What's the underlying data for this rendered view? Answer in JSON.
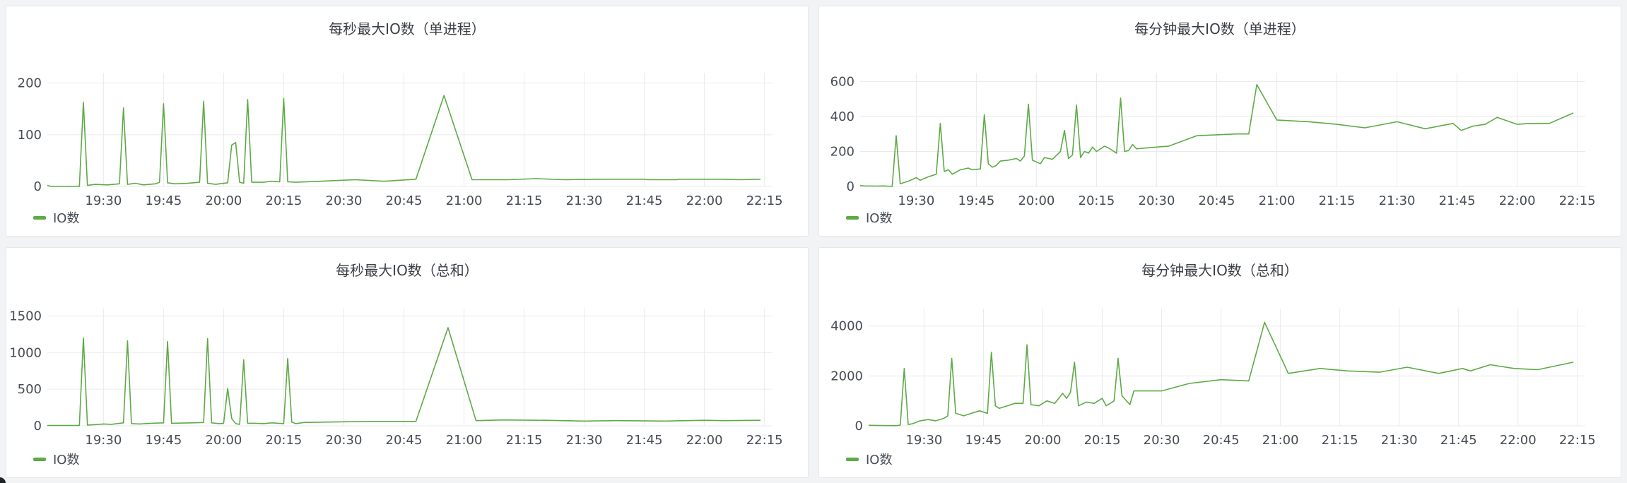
{
  "colors": {
    "series": "#5daa46",
    "grid": "#e8eaed",
    "tick": "#464c54"
  },
  "chart_data": [
    {
      "type": "line",
      "title": "每秒最大IO数（单进程）",
      "ylim": [
        0,
        220
      ],
      "yticks": [
        0,
        100,
        200
      ],
      "xlim": [
        "19:16",
        "22:17"
      ],
      "xticks": [
        "19:30",
        "19:45",
        "20:00",
        "20:15",
        "20:30",
        "20:45",
        "21:00",
        "21:15",
        "21:30",
        "21:45",
        "22:00",
        "22:15"
      ],
      "legend": "bottom-left",
      "grid": true,
      "series": [
        {
          "name": "IO数",
          "points": [
            [
              "19:16",
              2
            ],
            [
              "19:17",
              0
            ],
            [
              "19:24",
              0
            ],
            [
              "19:25",
              163
            ],
            [
              "19:26",
              2
            ],
            [
              "19:28",
              4
            ],
            [
              "19:31",
              3
            ],
            [
              "19:34",
              5
            ],
            [
              "19:35",
              152
            ],
            [
              "19:36",
              4
            ],
            [
              "19:38",
              6
            ],
            [
              "19:40",
              3
            ],
            [
              "19:43",
              5
            ],
            [
              "19:44",
              8
            ],
            [
              "19:45",
              160
            ],
            [
              "19:46",
              7
            ],
            [
              "19:48",
              5
            ],
            [
              "19:51",
              6
            ],
            [
              "19:54",
              8
            ],
            [
              "19:55",
              165
            ],
            [
              "19:56",
              6
            ],
            [
              "19:58",
              4
            ],
            [
              "20:00",
              6
            ],
            [
              "20:01",
              7
            ],
            [
              "20:02",
              80
            ],
            [
              "20:03",
              85
            ],
            [
              "20:04",
              8
            ],
            [
              "20:05",
              6
            ],
            [
              "20:06",
              168
            ],
            [
              "20:07",
              8
            ],
            [
              "20:10",
              8
            ],
            [
              "20:12",
              10
            ],
            [
              "20:14",
              9
            ],
            [
              "20:15",
              170
            ],
            [
              "20:16",
              9
            ],
            [
              "20:18",
              8
            ],
            [
              "20:24",
              10
            ],
            [
              "20:30",
              12
            ],
            [
              "20:33",
              13
            ],
            [
              "20:40",
              10
            ],
            [
              "20:48",
              14
            ],
            [
              "20:55",
              176
            ],
            [
              "21:02",
              13
            ],
            [
              "21:11",
              13
            ],
            [
              "21:18",
              15
            ],
            [
              "21:25",
              13
            ],
            [
              "21:35",
              14
            ],
            [
              "21:45",
              14
            ],
            [
              "21:46",
              13
            ],
            [
              "21:53",
              13
            ],
            [
              "21:54",
              14
            ],
            [
              "22:03",
              14
            ],
            [
              "22:09",
              13
            ],
            [
              "22:14",
              14
            ]
          ]
        }
      ]
    },
    {
      "type": "line",
      "title": "每分钟最大IO数（单进程）",
      "ylim": [
        0,
        650
      ],
      "yticks": [
        0,
        200,
        400,
        600
      ],
      "xlim": [
        "19:16",
        "22:17"
      ],
      "xticks": [
        "19:30",
        "19:45",
        "20:00",
        "20:15",
        "20:30",
        "20:45",
        "21:00",
        "21:15",
        "21:30",
        "21:45",
        "22:00",
        "22:15"
      ],
      "legend": "bottom-left",
      "grid": true,
      "series": [
        {
          "name": "IO数",
          "points": [
            [
              "19:16",
              5
            ],
            [
              "19:17",
              3
            ],
            [
              "19:20",
              2
            ],
            [
              "19:22",
              3
            ],
            [
              "19:24",
              0
            ],
            [
              "19:25",
              290
            ],
            [
              "19:26",
              15
            ],
            [
              "19:28",
              30
            ],
            [
              "19:30",
              50
            ],
            [
              "19:31",
              35
            ],
            [
              "19:33",
              55
            ],
            [
              "19:35",
              70
            ],
            [
              "19:36",
              360
            ],
            [
              "19:37",
              85
            ],
            [
              "19:38",
              95
            ],
            [
              "19:39",
              70
            ],
            [
              "19:41",
              95
            ],
            [
              "19:43",
              105
            ],
            [
              "19:44",
              95
            ],
            [
              "19:46",
              100
            ],
            [
              "19:47",
              410
            ],
            [
              "19:48",
              130
            ],
            [
              "19:49",
              110
            ],
            [
              "19:50",
              120
            ],
            [
              "19:51",
              145
            ],
            [
              "19:53",
              150
            ],
            [
              "19:55",
              160
            ],
            [
              "19:56",
              145
            ],
            [
              "19:57",
              175
            ],
            [
              "19:58",
              470
            ],
            [
              "19:59",
              150
            ],
            [
              "20:01",
              130
            ],
            [
              "20:02",
              165
            ],
            [
              "20:04",
              155
            ],
            [
              "20:06",
              200
            ],
            [
              "20:07",
              320
            ],
            [
              "20:08",
              160
            ],
            [
              "20:09",
              180
            ],
            [
              "20:10",
              465
            ],
            [
              "20:11",
              165
            ],
            [
              "20:12",
              200
            ],
            [
              "20:13",
              190
            ],
            [
              "20:14",
              225
            ],
            [
              "20:15",
              200
            ],
            [
              "20:17",
              230
            ],
            [
              "20:18",
              220
            ],
            [
              "20:20",
              190
            ],
            [
              "20:21",
              505
            ],
            [
              "20:22",
              200
            ],
            [
              "20:23",
              205
            ],
            [
              "20:24",
              240
            ],
            [
              "20:25",
              215
            ],
            [
              "20:30",
              225
            ],
            [
              "20:33",
              230
            ],
            [
              "20:40",
              290
            ],
            [
              "20:50",
              300
            ],
            [
              "20:53",
              300
            ],
            [
              "20:55",
              582
            ],
            [
              "21:00",
              380
            ],
            [
              "21:08",
              370
            ],
            [
              "21:15",
              355
            ],
            [
              "21:22",
              335
            ],
            [
              "21:30",
              370
            ],
            [
              "21:37",
              330
            ],
            [
              "21:44",
              360
            ],
            [
              "21:46",
              320
            ],
            [
              "21:49",
              345
            ],
            [
              "21:52",
              355
            ],
            [
              "21:55",
              395
            ],
            [
              "22:00",
              355
            ],
            [
              "22:03",
              360
            ],
            [
              "22:08",
              360
            ],
            [
              "22:14",
              420
            ]
          ]
        }
      ]
    },
    {
      "type": "line",
      "title": "每秒最大IO数（总和）",
      "ylim": [
        0,
        1600
      ],
      "yticks": [
        0,
        500,
        1000,
        1500
      ],
      "xlim": [
        "19:16",
        "22:17"
      ],
      "xticks": [
        "19:30",
        "19:45",
        "20:00",
        "20:15",
        "20:30",
        "20:45",
        "21:00",
        "21:15",
        "21:30",
        "21:45",
        "22:00",
        "22:15"
      ],
      "legend": "bottom-left",
      "grid": true,
      "series": [
        {
          "name": "IO数",
          "points": [
            [
              "19:16",
              5
            ],
            [
              "19:24",
              5
            ],
            [
              "19:25",
              1200
            ],
            [
              "19:26",
              10
            ],
            [
              "19:29",
              20
            ],
            [
              "19:30",
              25
            ],
            [
              "19:32",
              20
            ],
            [
              "19:35",
              40
            ],
            [
              "19:36",
              1160
            ],
            [
              "19:37",
              30
            ],
            [
              "19:39",
              25
            ],
            [
              "19:42",
              35
            ],
            [
              "19:45",
              40
            ],
            [
              "19:46",
              1150
            ],
            [
              "19:47",
              35
            ],
            [
              "19:52",
              40
            ],
            [
              "19:55",
              45
            ],
            [
              "19:56",
              1190
            ],
            [
              "19:57",
              40
            ],
            [
              "19:58",
              35
            ],
            [
              "19:59",
              30
            ],
            [
              "20:00",
              35
            ],
            [
              "20:01",
              510
            ],
            [
              "20:02",
              100
            ],
            [
              "20:03",
              30
            ],
            [
              "20:04",
              20
            ],
            [
              "20:05",
              900
            ],
            [
              "20:06",
              35
            ],
            [
              "20:08",
              35
            ],
            [
              "20:10",
              30
            ],
            [
              "20:12",
              40
            ],
            [
              "20:15",
              30
            ],
            [
              "20:16",
              920
            ],
            [
              "20:17",
              50
            ],
            [
              "20:18",
              30
            ],
            [
              "20:20",
              45
            ],
            [
              "20:30",
              55
            ],
            [
              "20:40",
              60
            ],
            [
              "20:48",
              60
            ],
            [
              "20:56",
              1340
            ],
            [
              "21:03",
              70
            ],
            [
              "21:10",
              80
            ],
            [
              "21:20",
              75
            ],
            [
              "21:30",
              65
            ],
            [
              "21:38",
              70
            ],
            [
              "21:50",
              65
            ],
            [
              "22:00",
              75
            ],
            [
              "22:05",
              70
            ],
            [
              "22:14",
              75
            ]
          ]
        }
      ]
    },
    {
      "type": "line",
      "title": "每分钟最大IO数（总和）",
      "ylim": [
        0,
        4700
      ],
      "yticks": [
        0,
        2000,
        4000
      ],
      "xlim": [
        "19:16",
        "22:17"
      ],
      "xticks": [
        "19:30",
        "19:45",
        "20:00",
        "20:15",
        "20:30",
        "20:45",
        "21:00",
        "21:15",
        "21:30",
        "21:45",
        "22:00",
        "22:15"
      ],
      "legend": "bottom-left",
      "grid": true,
      "series": [
        {
          "name": "IO数",
          "points": [
            [
              "19:16",
              20
            ],
            [
              "19:19",
              10
            ],
            [
              "19:23",
              5
            ],
            [
              "19:24",
              30
            ],
            [
              "19:25",
              2300
            ],
            [
              "19:26",
              50
            ],
            [
              "19:27",
              80
            ],
            [
              "19:29",
              200
            ],
            [
              "19:31",
              250
            ],
            [
              "19:33",
              200
            ],
            [
              "19:35",
              300
            ],
            [
              "19:36",
              400
            ],
            [
              "19:37",
              2700
            ],
            [
              "19:38",
              500
            ],
            [
              "19:40",
              400
            ],
            [
              "19:42",
              500
            ],
            [
              "19:44",
              600
            ],
            [
              "19:46",
              500
            ],
            [
              "19:47",
              2950
            ],
            [
              "19:48",
              800
            ],
            [
              "19:49",
              700
            ],
            [
              "19:51",
              800
            ],
            [
              "19:53",
              900
            ],
            [
              "19:55",
              900
            ],
            [
              "19:56",
              3250
            ],
            [
              "19:57",
              850
            ],
            [
              "19:59",
              800
            ],
            [
              "20:01",
              1000
            ],
            [
              "20:03",
              900
            ],
            [
              "20:05",
              1300
            ],
            [
              "20:06",
              1100
            ],
            [
              "20:07",
              1350
            ],
            [
              "20:08",
              2550
            ],
            [
              "20:09",
              800
            ],
            [
              "20:11",
              950
            ],
            [
              "20:13",
              900
            ],
            [
              "20:15",
              1100
            ],
            [
              "20:16",
              800
            ],
            [
              "20:18",
              1000
            ],
            [
              "20:19",
              2700
            ],
            [
              "20:20",
              1200
            ],
            [
              "20:22",
              850
            ],
            [
              "20:23",
              1400
            ],
            [
              "20:30",
              1400
            ],
            [
              "20:37",
              1700
            ],
            [
              "20:45",
              1850
            ],
            [
              "20:52",
              1800
            ],
            [
              "20:56",
              4150
            ],
            [
              "21:02",
              2100
            ],
            [
              "21:10",
              2300
            ],
            [
              "21:17",
              2200
            ],
            [
              "21:25",
              2150
            ],
            [
              "21:32",
              2350
            ],
            [
              "21:40",
              2100
            ],
            [
              "21:46",
              2300
            ],
            [
              "21:48",
              2200
            ],
            [
              "21:53",
              2450
            ],
            [
              "21:59",
              2300
            ],
            [
              "22:05",
              2250
            ],
            [
              "22:14",
              2550
            ]
          ]
        }
      ]
    }
  ]
}
